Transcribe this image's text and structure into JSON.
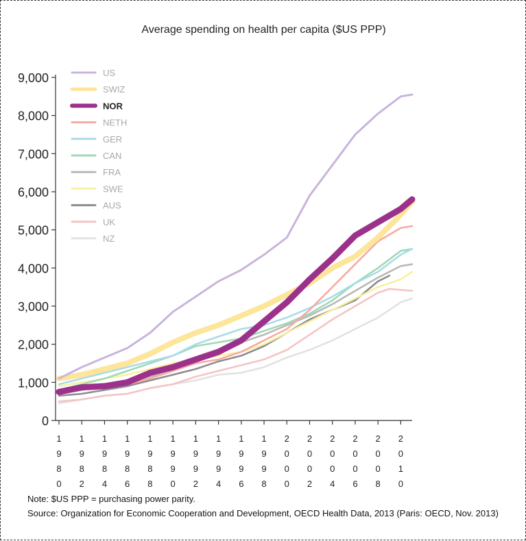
{
  "chart_data": {
    "type": "line",
    "title": "Average spending on health per capita ($US PPP)",
    "xlabel": "",
    "ylabel": "",
    "ylim": [
      0,
      9000
    ],
    "xlim": [
      1980,
      2011
    ],
    "grid": false,
    "legend_position": "top-left",
    "y_ticks": [
      "0",
      "1,000",
      "2,000",
      "3,000",
      "4,000",
      "5,000",
      "6,000",
      "7,000",
      "8,000",
      "9,000"
    ],
    "y_tick_values": [
      0,
      1000,
      2000,
      3000,
      4000,
      5000,
      6000,
      7000,
      8000,
      9000
    ],
    "x_ticks": [
      "1980",
      "1982",
      "1984",
      "1986",
      "1988",
      "1990",
      "1992",
      "1994",
      "1996",
      "1998",
      "2000",
      "2002",
      "2004",
      "2006",
      "2008",
      "2010"
    ],
    "x_tick_values": [
      1980,
      1982,
      1984,
      1986,
      1988,
      1990,
      1992,
      1994,
      1996,
      1998,
      2000,
      2002,
      2004,
      2006,
      2008,
      2010
    ],
    "series": [
      {
        "name": "US",
        "color": "#c9b4dc",
        "highlight": false,
        "x": [
          1980,
          1982,
          1984,
          1986,
          1988,
          1990,
          1992,
          1994,
          1996,
          1998,
          2000,
          2002,
          2004,
          2006,
          2008,
          2010,
          2011
        ],
        "y": [
          1100,
          1400,
          1650,
          1900,
          2300,
          2850,
          3250,
          3650,
          3950,
          4350,
          4800,
          5900,
          6700,
          7500,
          8050,
          8500,
          8550
        ]
      },
      {
        "name": "SWIZ",
        "color": "#fde59a",
        "highlight": false,
        "x": [
          1980,
          1982,
          1984,
          1986,
          1988,
          1990,
          1992,
          1994,
          1996,
          1998,
          2000,
          2002,
          2004,
          2006,
          2008,
          2010,
          2011
        ],
        "y": [
          1100,
          1200,
          1350,
          1500,
          1750,
          2050,
          2300,
          2500,
          2750,
          3000,
          3300,
          3600,
          4000,
          4300,
          4800,
          5400,
          5750
        ]
      },
      {
        "name": "NOR",
        "color": "#9c318b",
        "highlight": true,
        "x": [
          1980,
          1982,
          1984,
          1986,
          1988,
          1990,
          1992,
          1994,
          1996,
          1998,
          2000,
          2002,
          2004,
          2006,
          2008,
          2010,
          2011
        ],
        "y": [
          750,
          870,
          900,
          1000,
          1250,
          1400,
          1600,
          1800,
          2100,
          2600,
          3100,
          3700,
          4250,
          4850,
          5200,
          5550,
          5800
        ]
      },
      {
        "name": "NETH",
        "color": "#f5aaa2",
        "highlight": false,
        "x": [
          1980,
          1982,
          1984,
          1986,
          1988,
          1990,
          1992,
          1994,
          1996,
          1998,
          2000,
          2002,
          2004,
          2006,
          2008,
          2010,
          2011
        ],
        "y": [
          800,
          850,
          900,
          950,
          1100,
          1300,
          1500,
          1600,
          1800,
          2100,
          2400,
          2900,
          3500,
          4100,
          4700,
          5050,
          5100
        ]
      },
      {
        "name": "GER",
        "color": "#a8dbe8",
        "highlight": false,
        "x": [
          1980,
          1982,
          1984,
          1986,
          1988,
          1990,
          1992,
          1994,
          1996,
          1998,
          2000,
          2002,
          2004,
          2006,
          2008,
          2010,
          2011
        ],
        "y": [
          950,
          1100,
          1250,
          1400,
          1550,
          1700,
          2000,
          2200,
          2400,
          2500,
          2700,
          2950,
          3250,
          3600,
          3900,
          4350,
          4500
        ]
      },
      {
        "name": "CAN",
        "color": "#9fd9b4",
        "highlight": false,
        "x": [
          1980,
          1982,
          1984,
          1986,
          1988,
          1990,
          1992,
          1994,
          1996,
          1998,
          2000,
          2002,
          2004,
          2006,
          2008,
          2010,
          2011
        ],
        "y": [
          800,
          950,
          1100,
          1300,
          1500,
          1700,
          1950,
          2050,
          2150,
          2350,
          2550,
          2800,
          3150,
          3600,
          4000,
          4450,
          4500
        ]
      },
      {
        "name": "FRA",
        "color": "#b8b8b8",
        "highlight": false,
        "x": [
          1980,
          1982,
          1984,
          1986,
          1988,
          1990,
          1992,
          1994,
          1996,
          1998,
          2000,
          2002,
          2004,
          2006,
          2008,
          2010,
          2011
        ],
        "y": [
          700,
          800,
          900,
          1000,
          1150,
          1350,
          1550,
          1750,
          2050,
          2250,
          2500,
          2750,
          3050,
          3400,
          3750,
          4050,
          4100
        ]
      },
      {
        "name": "SWE",
        "color": "#f9f0a0",
        "highlight": false,
        "x": [
          1980,
          1982,
          1984,
          1986,
          1988,
          1990,
          1992,
          1994,
          1996,
          1998,
          2000,
          2002,
          2004,
          2006,
          2008,
          2010,
          2011
        ],
        "y": [
          900,
          1000,
          1100,
          1200,
          1350,
          1500,
          1600,
          1700,
          1800,
          2000,
          2300,
          2600,
          2900,
          3200,
          3500,
          3700,
          3900
        ]
      },
      {
        "name": "AUS",
        "color": "#8c8c8c",
        "highlight": false,
        "x": [
          1980,
          1982,
          1984,
          1986,
          1988,
          1990,
          1992,
          1994,
          1996,
          1998,
          2000,
          2002,
          2004,
          2006,
          2008,
          2009
        ],
        "y": [
          650,
          700,
          800,
          900,
          1050,
          1200,
          1350,
          1550,
          1700,
          1950,
          2300,
          2650,
          2900,
          3150,
          3650,
          3800
        ]
      },
      {
        "name": "UK",
        "color": "#f4c4c4",
        "highlight": false,
        "x": [
          1980,
          1982,
          1984,
          1986,
          1988,
          1990,
          1992,
          1994,
          1996,
          1998,
          2000,
          2002,
          2004,
          2006,
          2008,
          2009,
          2011
        ],
        "y": [
          500,
          550,
          650,
          700,
          850,
          950,
          1150,
          1300,
          1450,
          1600,
          1850,
          2250,
          2650,
          3000,
          3350,
          3450,
          3400
        ]
      },
      {
        "name": "NZ",
        "color": "#e2e2e2",
        "highlight": false,
        "x": [
          1980,
          1982,
          1984,
          1986,
          1988,
          1990,
          1992,
          1994,
          1996,
          1998,
          2000,
          2002,
          2004,
          2006,
          2008,
          2010,
          2011
        ],
        "y": [
          450,
          550,
          650,
          700,
          850,
          950,
          1050,
          1200,
          1250,
          1400,
          1650,
          1850,
          2100,
          2400,
          2700,
          3100,
          3200
        ]
      }
    ]
  },
  "notes": {
    "note": "Note: $US PPP = purchasing power parity.",
    "source": "Source: Organization for Economic Cooperation and Development, OECD Health Data, 2013 (Paris: OECD, Nov. 2013)"
  }
}
